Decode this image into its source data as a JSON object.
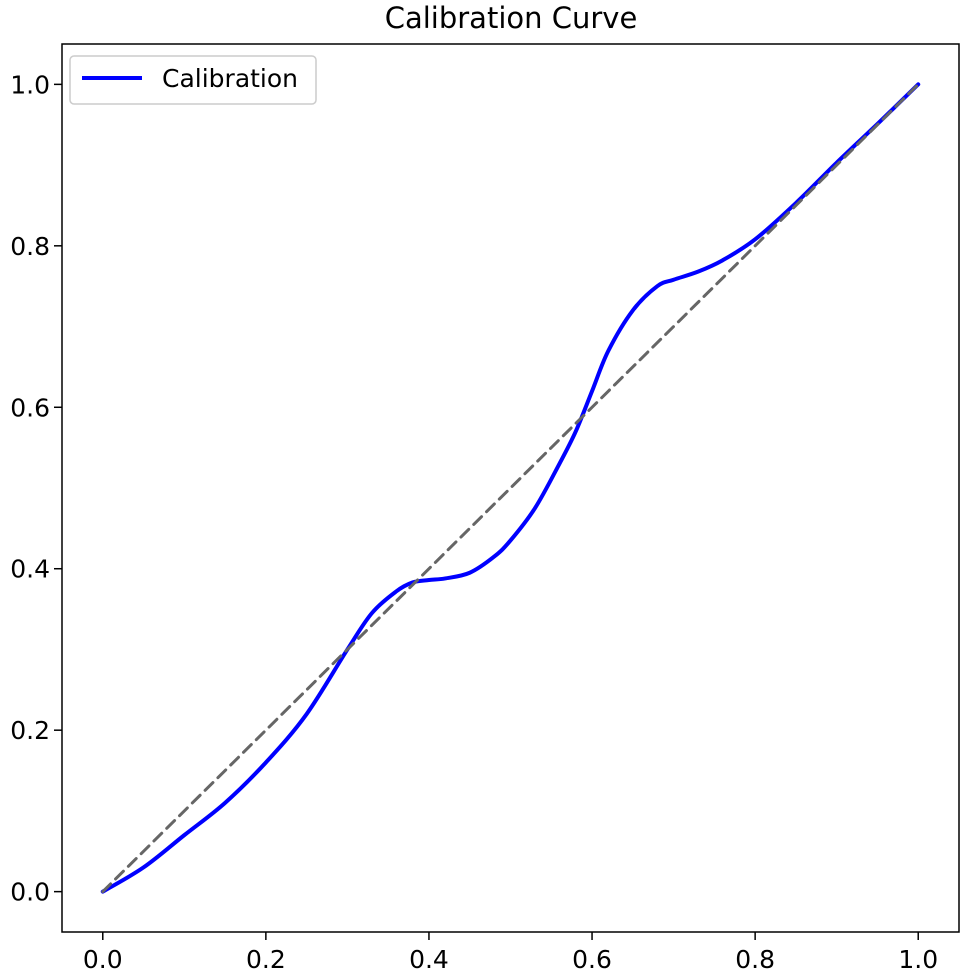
{
  "chart_data": {
    "type": "line",
    "title": "Calibration Curve",
    "xlabel": "",
    "ylabel": "",
    "xlim": [
      -0.05,
      1.05
    ],
    "ylim": [
      -0.05,
      1.05
    ],
    "x_ticks": [
      0.0,
      0.2,
      0.4,
      0.6,
      0.8,
      1.0
    ],
    "y_ticks": [
      0.0,
      0.2,
      0.4,
      0.6,
      0.8,
      1.0
    ],
    "x_tick_labels": [
      "0.0",
      "0.2",
      "0.4",
      "0.6",
      "0.8",
      "1.0"
    ],
    "y_tick_labels": [
      "0.0",
      "0.2",
      "0.4",
      "0.6",
      "0.8",
      "1.0"
    ],
    "grid": false,
    "legend": {
      "position": "upper-left",
      "entries": [
        "Calibration"
      ]
    },
    "series": [
      {
        "name": "Calibration",
        "color": "#0000ff",
        "style": "solid",
        "x": [
          0.0,
          0.05,
          0.1,
          0.15,
          0.2,
          0.25,
          0.3,
          0.33,
          0.36,
          0.38,
          0.4,
          0.42,
          0.45,
          0.48,
          0.5,
          0.53,
          0.56,
          0.58,
          0.6,
          0.62,
          0.65,
          0.68,
          0.7,
          0.73,
          0.76,
          0.8,
          0.85,
          0.9,
          0.95,
          1.0
        ],
        "y": [
          0.0,
          0.03,
          0.07,
          0.11,
          0.16,
          0.22,
          0.3,
          0.345,
          0.372,
          0.383,
          0.386,
          0.388,
          0.395,
          0.415,
          0.435,
          0.475,
          0.53,
          0.57,
          0.62,
          0.67,
          0.72,
          0.75,
          0.758,
          0.768,
          0.782,
          0.808,
          0.853,
          0.903,
          0.951,
          1.0
        ]
      },
      {
        "color": "#666666",
        "style": "dashed",
        "x": [
          0.0,
          1.0
        ],
        "y": [
          0.0,
          1.0
        ]
      }
    ]
  }
}
